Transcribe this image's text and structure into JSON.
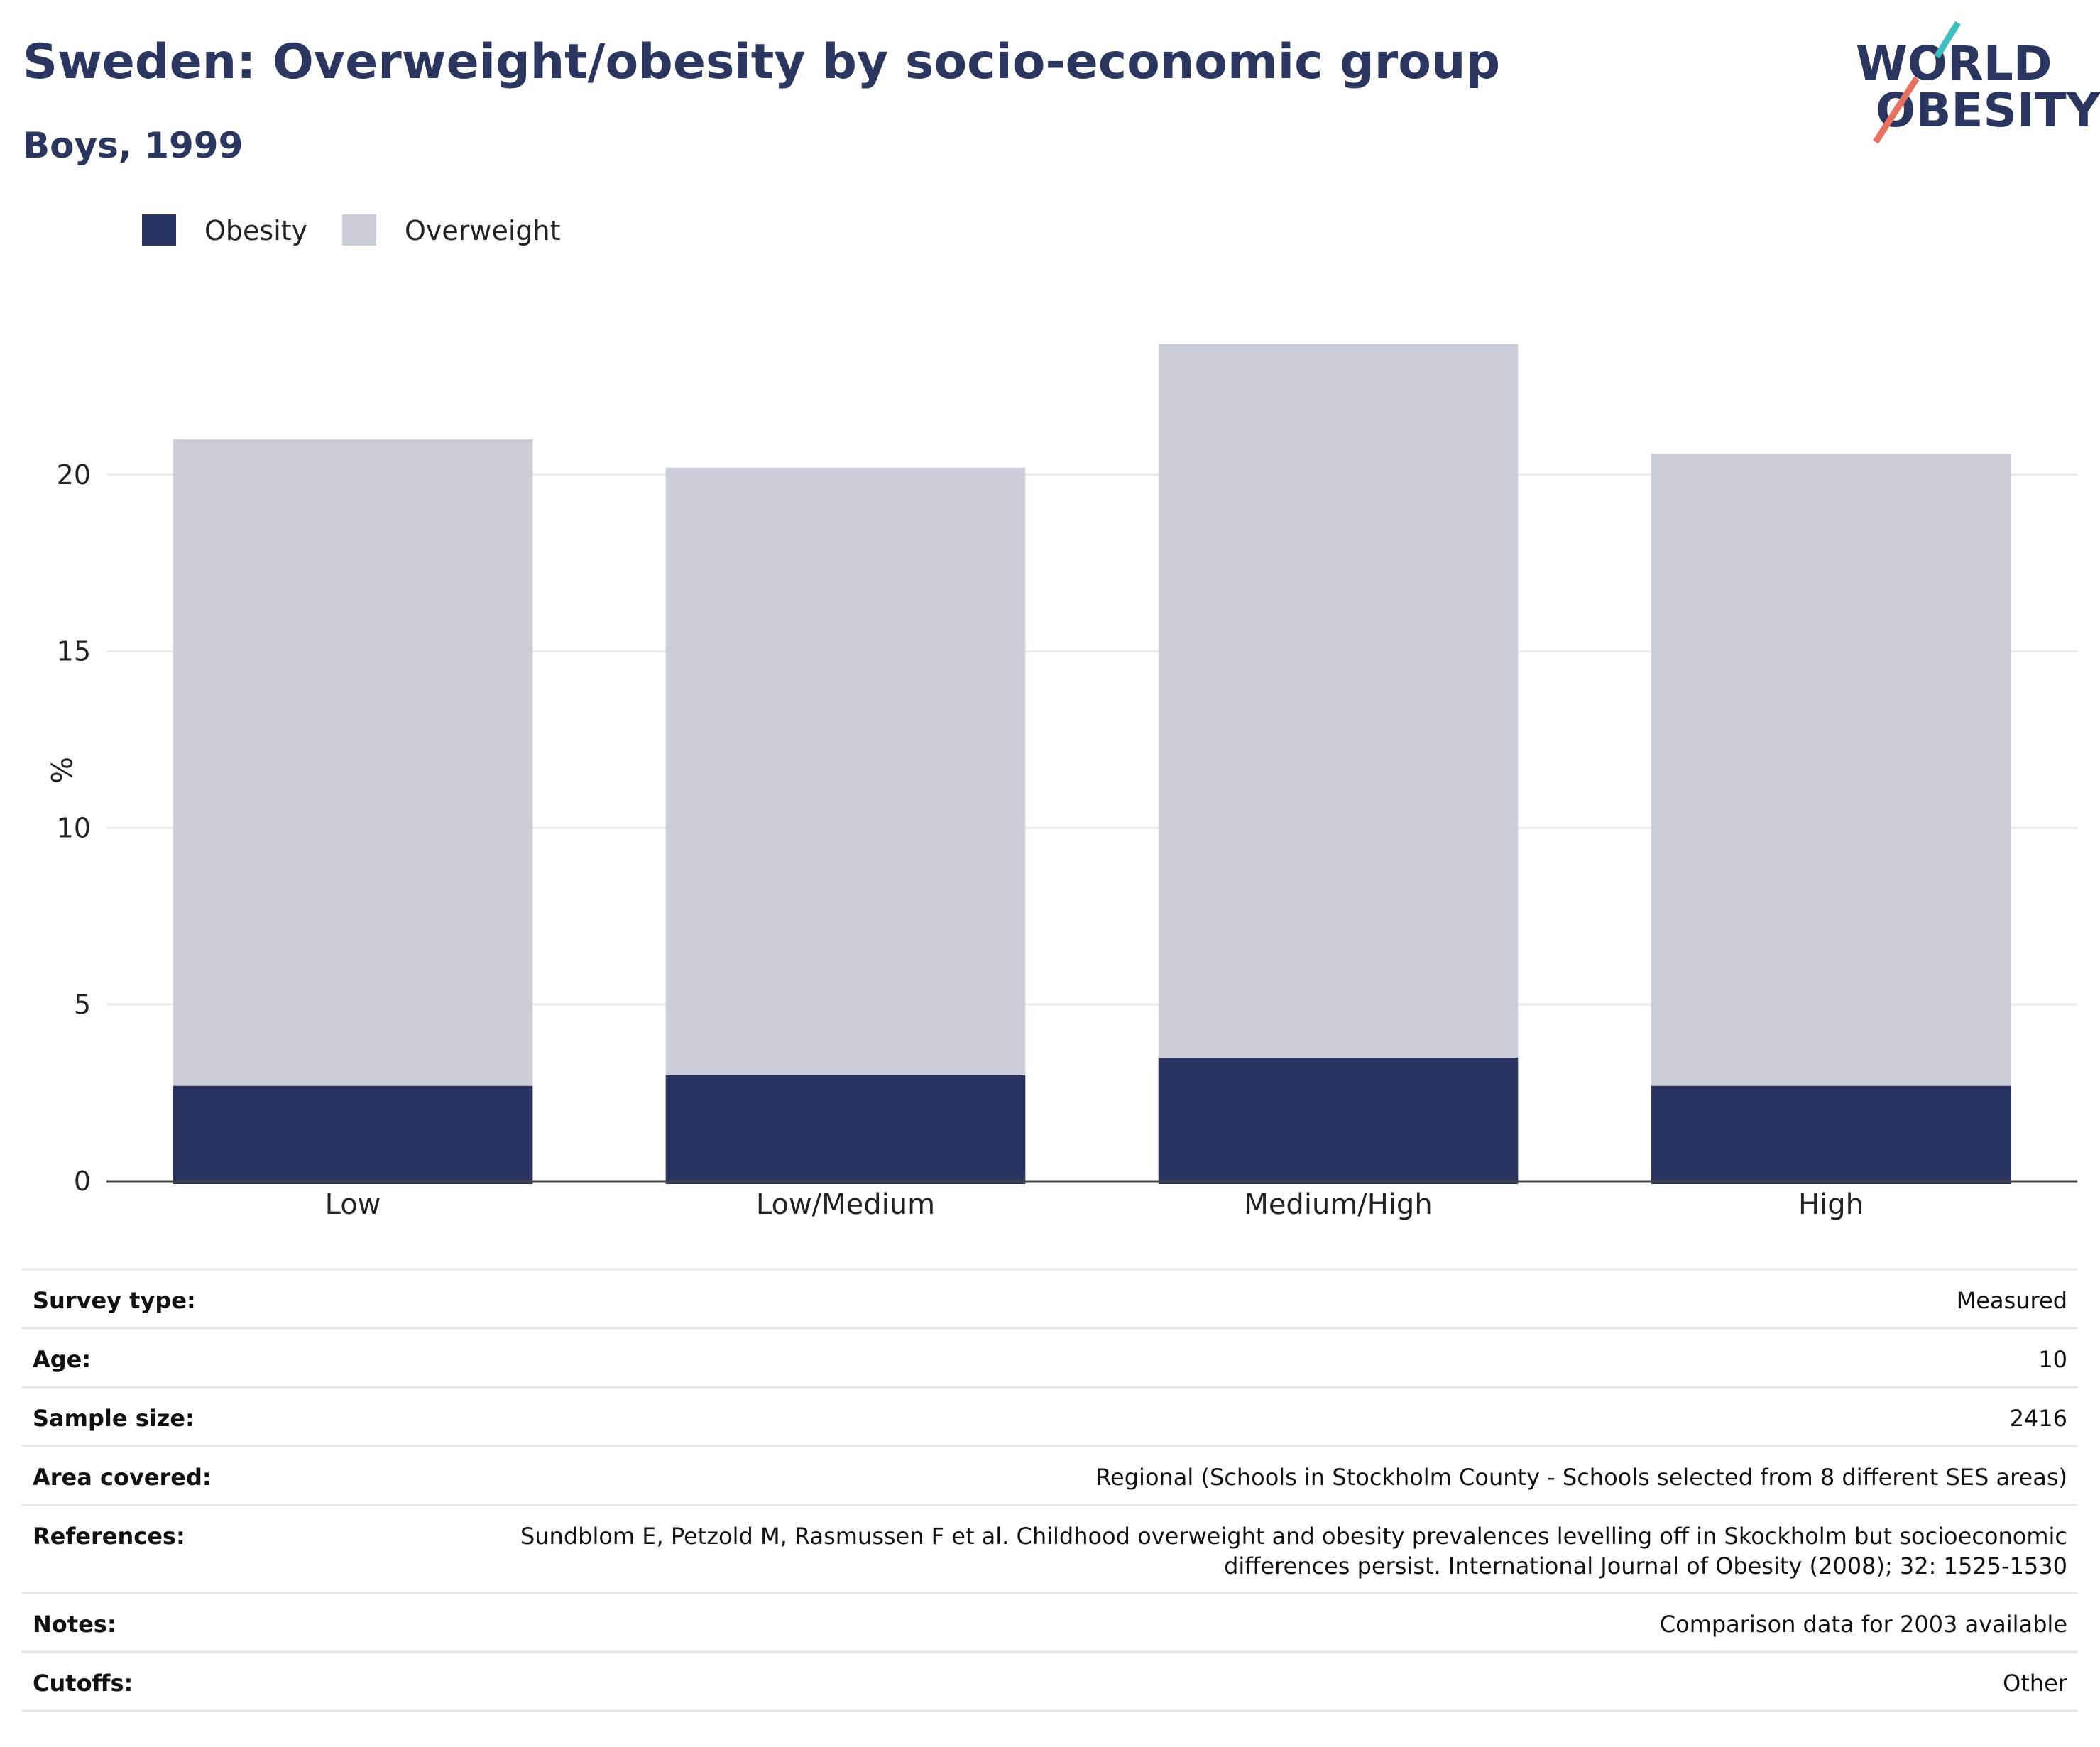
{
  "header": {
    "title": "Sweden: Overweight/obesity by socio-economic group",
    "subtitle": "Boys, 1999"
  },
  "logo": {
    "line1": "WORLD",
    "line2": "OBESITY",
    "colors": {
      "navy": "#2a365f",
      "teal": "#3bbfc1",
      "coral": "#e8705f"
    }
  },
  "colors": {
    "obesity": "#293462",
    "overweight": "#cbcdd8",
    "grid": "#ebebeb",
    "axis": "#444444",
    "title": "#2a365f",
    "divider": "#e6e6e6"
  },
  "chart_data": {
    "type": "bar",
    "stacked": true,
    "title": "Sweden: Overweight/obesity by socio-economic group",
    "subtitle": "Boys, 1999",
    "categories": [
      "Low",
      "Low/Medium",
      "Medium/High",
      "High"
    ],
    "series": [
      {
        "name": "Obesity",
        "values": [
          2.7,
          3.0,
          3.5,
          2.7
        ]
      },
      {
        "name": "Overweight",
        "values": [
          18.3,
          17.2,
          20.2,
          17.9
        ]
      }
    ],
    "xlabel": "",
    "ylabel": "%",
    "ylim": [
      0,
      25
    ],
    "yticks": [
      0,
      5,
      10,
      15,
      20
    ],
    "grid": true,
    "legend": "top-left"
  },
  "metadata": [
    {
      "label": "Survey type:",
      "value": [
        "Measured"
      ]
    },
    {
      "label": "Age:",
      "value": [
        "10"
      ]
    },
    {
      "label": "Sample size:",
      "value": [
        "2416"
      ]
    },
    {
      "label": "Area covered:",
      "value": [
        "Regional (Schools in Stockholm County - Schools selected from 8 different SES areas)"
      ]
    },
    {
      "label": "References:",
      "value": [
        "Sundblom E, Petzold M, Rasmussen F et al. Childhood overweight and obesity prevalences levelling off in Skockholm but socioeconomic",
        "differences persist. International Journal of Obesity (2008); 32: 1525-1530"
      ]
    },
    {
      "label": "Notes:",
      "value": [
        "Comparison data for 2003 available"
      ]
    },
    {
      "label": "Cutoffs:",
      "value": [
        "Other"
      ]
    }
  ]
}
